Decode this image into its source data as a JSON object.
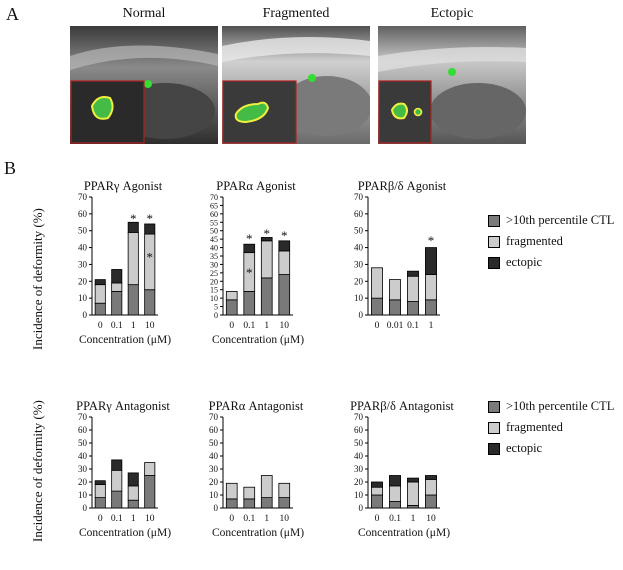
{
  "panel_a": {
    "letter": "A",
    "images": [
      {
        "title": "Normal"
      },
      {
        "title": "Fragmented"
      },
      {
        "title": "Ectopic"
      }
    ]
  },
  "panel_b": {
    "letter": "B",
    "ylabel": "Incidence of deformity (%)",
    "legend": [
      {
        "label": ">10th percentile CTL",
        "color": "#7a7a7a"
      },
      {
        "label": "fragmented",
        "color": "#cccccc"
      },
      {
        "label": "ectopic",
        "color": "#2a2a2a"
      }
    ]
  },
  "chart_data": [
    {
      "type": "bar",
      "title": "PPARγ Agonist",
      "xlabel": "Concentration (μM)",
      "ylim": [
        0,
        70
      ],
      "yticks": [
        "0",
        "10",
        "20",
        "30",
        "40",
        "50",
        "60",
        "70"
      ],
      "categories": [
        "0",
        "0.1",
        "1",
        "10"
      ],
      "series": [
        {
          "name": ">10th percentile CTL",
          "values": [
            7,
            14,
            18,
            15
          ]
        },
        {
          "name": "fragmented",
          "values": [
            11,
            5,
            31,
            33
          ]
        },
        {
          "name": "ectopic",
          "values": [
            3,
            8,
            6,
            6
          ]
        }
      ],
      "annotations": [
        {
          "category": "1",
          "text": "*",
          "at": 57
        },
        {
          "category": "10",
          "text": "*",
          "at": 57
        },
        {
          "category": "10",
          "text": "*",
          "at": 34
        }
      ]
    },
    {
      "type": "bar",
      "title": "PPARα Agonist",
      "xlabel": "Concentration (μM)",
      "ylim": [
        0,
        70
      ],
      "yticks": [
        "0",
        "5",
        "10",
        "15",
        "20",
        "25",
        "30",
        "35",
        "40",
        "45",
        "50",
        "55",
        "60",
        "65",
        "70"
      ],
      "categories": [
        "0",
        "0.1",
        "1",
        "10"
      ],
      "series": [
        {
          "name": ">10th percentile CTL",
          "values": [
            9,
            14,
            22,
            24
          ]
        },
        {
          "name": "fragmented",
          "values": [
            5,
            23,
            22,
            14
          ]
        },
        {
          "name": "ectopic",
          "values": [
            0,
            5,
            2,
            6
          ]
        }
      ],
      "annotations": [
        {
          "category": "0.1",
          "text": "*",
          "at": 45
        },
        {
          "category": "0.1",
          "text": "*",
          "at": 25
        },
        {
          "category": "1",
          "text": "*",
          "at": 48
        },
        {
          "category": "10",
          "text": "*",
          "at": 47
        }
      ]
    },
    {
      "type": "bar",
      "title": "PPARβ/δ Agonist",
      "xlabel": "",
      "ylim": [
        0,
        70
      ],
      "yticks": [
        "0",
        "10",
        "20",
        "30",
        "40",
        "50",
        "60",
        "70"
      ],
      "categories": [
        "0",
        "0.01",
        "0.1",
        "1"
      ],
      "series": [
        {
          "name": ">10th percentile CTL",
          "values": [
            10,
            9,
            8,
            9
          ]
        },
        {
          "name": "fragmented",
          "values": [
            18,
            12,
            15,
            15
          ]
        },
        {
          "name": "ectopic",
          "values": [
            0,
            0,
            3,
            16
          ]
        }
      ],
      "annotations": [
        {
          "category": "1",
          "text": "*",
          "at": 44
        }
      ]
    },
    {
      "type": "bar",
      "title": "PPARγ Antagonist",
      "xlabel": "Concentration (μM)",
      "ylim": [
        0,
        70
      ],
      "yticks": [
        "0",
        "10",
        "20",
        "30",
        "40",
        "50",
        "60",
        "70"
      ],
      "categories": [
        "0",
        "0.1",
        "1",
        "10"
      ],
      "series": [
        {
          "name": ">10th percentile CTL",
          "values": [
            8,
            13,
            6,
            25
          ]
        },
        {
          "name": "fragmented",
          "values": [
            10,
            16,
            11,
            10
          ]
        },
        {
          "name": "ectopic",
          "values": [
            3,
            8,
            10,
            0
          ]
        }
      ],
      "annotations": []
    },
    {
      "type": "bar",
      "title": "PPARα Antagonist",
      "xlabel": "Concentration (μM)",
      "ylim": [
        0,
        70
      ],
      "yticks": [
        "0",
        "10",
        "20",
        "30",
        "40",
        "50",
        "60",
        "70"
      ],
      "categories": [
        "0",
        "0.1",
        "1",
        "10"
      ],
      "series": [
        {
          "name": ">10th percentile CTL",
          "values": [
            7,
            7,
            8,
            8
          ]
        },
        {
          "name": "fragmented",
          "values": [
            12,
            9,
            17,
            11
          ]
        },
        {
          "name": "ectopic",
          "values": [
            0,
            0,
            0,
            0
          ]
        }
      ],
      "annotations": []
    },
    {
      "type": "bar",
      "title": "PPARβ/δ Antagonist",
      "xlabel": "Concentration (μM)",
      "ylim": [
        0,
        70
      ],
      "yticks": [
        "0",
        "10",
        "20",
        "30",
        "40",
        "50",
        "60",
        "70"
      ],
      "categories": [
        "0",
        "0.1",
        "1",
        "10"
      ],
      "series": [
        {
          "name": ">10th percentile CTL",
          "values": [
            10,
            5,
            2,
            10
          ]
        },
        {
          "name": "fragmented",
          "values": [
            6,
            12,
            18,
            12
          ]
        },
        {
          "name": "ectopic",
          "values": [
            4,
            8,
            3,
            3
          ]
        }
      ],
      "annotations": []
    }
  ]
}
